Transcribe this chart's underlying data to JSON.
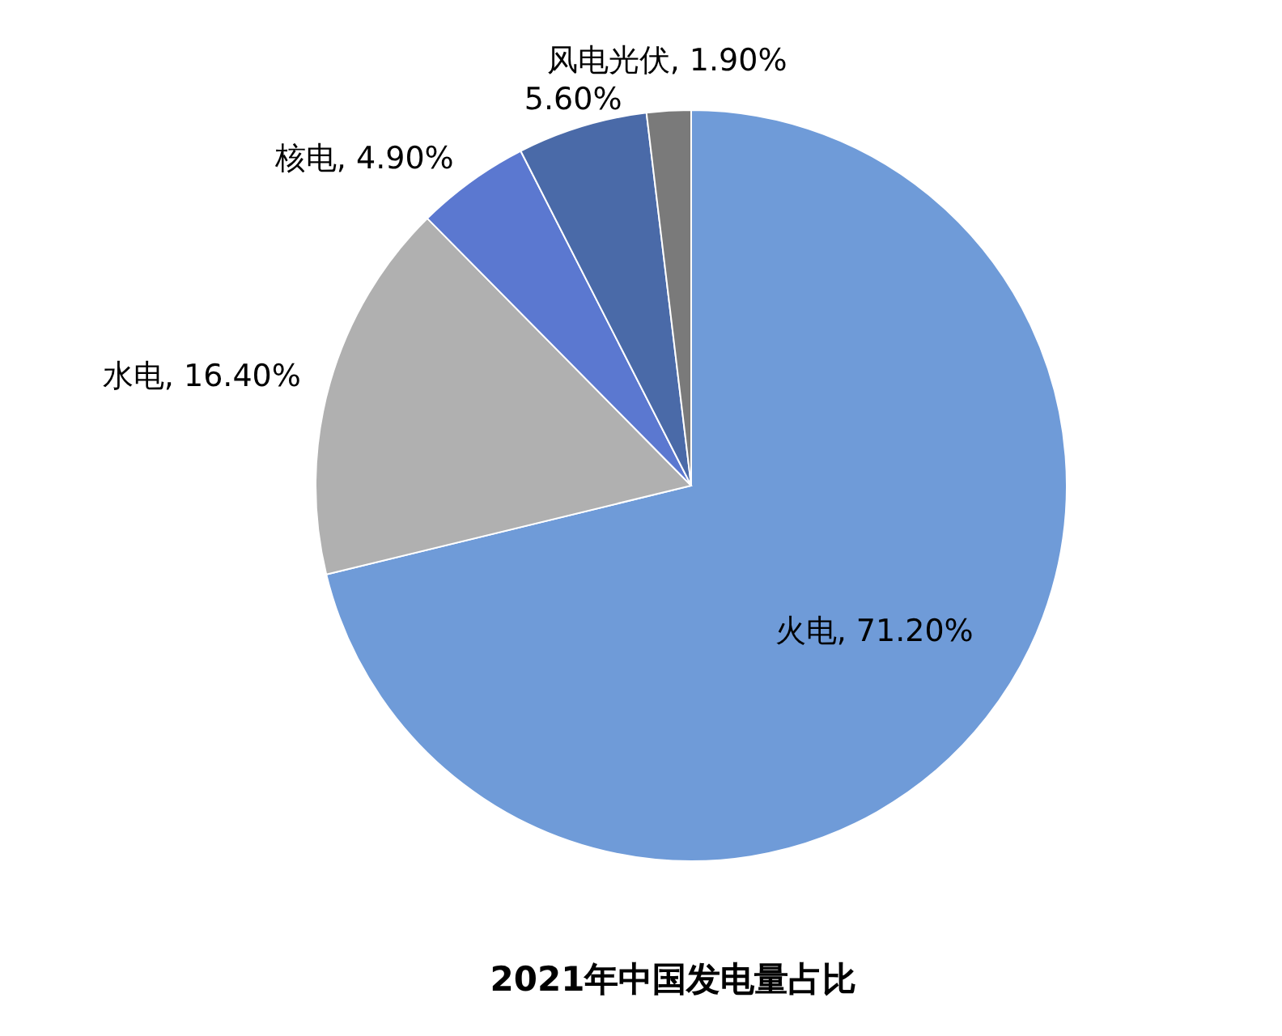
{
  "chart_data": {
    "type": "pie",
    "title": "2021年中国发电量占比",
    "categories": [
      "火电",
      "水电",
      "核电",
      null,
      "风电光伏"
    ],
    "values": [
      71.2,
      16.4,
      4.9,
      5.6,
      1.9
    ],
    "value_labels": [
      "71.20%",
      "16.40%",
      "4.90%",
      "5.60%",
      "1.90%"
    ],
    "colors": [
      "#6f9bd8",
      "#b0b0b0",
      "#5b78d0",
      "#4a6aa8",
      "#7a7a7a"
    ],
    "legend": false
  }
}
